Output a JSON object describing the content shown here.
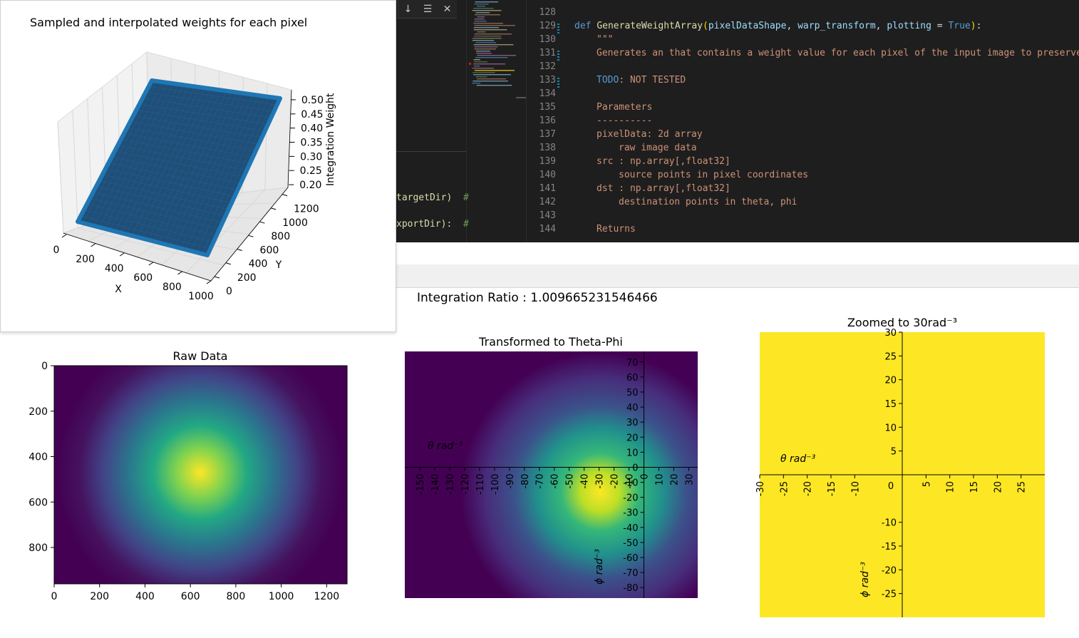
{
  "editor": {
    "find_widget": {
      "next_icon": "arrow-down-icon",
      "selection_icon": "selection-lines-icon",
      "close_icon": "close-icon"
    },
    "left_lines": [
      {
        "text": "targetDir)",
        "comment": "#"
      },
      {
        "text": "xportDir):",
        "comment": "#"
      }
    ],
    "line_numbers": [
      "128",
      "129",
      "130",
      "131",
      "132",
      "133",
      "134",
      "135",
      "136",
      "137",
      "138",
      "139",
      "140",
      "141",
      "142",
      "143",
      "144"
    ],
    "code": {
      "def_kw": "def",
      "func_name": "GenerateWeightArray",
      "paren_open": "(",
      "param1": "pixelDataShape",
      "comma1": ", ",
      "param2": "warp_transform",
      "comma2": ", ",
      "param3": "plotting",
      "eq": " = ",
      "bool_val": "True",
      "paren_close": ")",
      "colon": ":",
      "doc_open": "\"\"\"",
      "doc_line1": "Generates an that contains a weight value for each pixel of the input image to preserve",
      "todo_kw": "TODO",
      "todo_rest": ": NOT TESTED",
      "params_header": "Parameters",
      "params_rule": "----------",
      "p1": "pixelData: 2d array",
      "p1_desc": "raw image data",
      "p2": "src : np.array[,float32]",
      "p2_desc": "source points in pixel coordinates",
      "p3": "dst : np.array[,float32]",
      "p3_desc": "destination points in theta, phi",
      "returns": "Returns"
    }
  },
  "integration_ratio": "Integration Ratio : 1.009665231546466",
  "chart_data": [
    {
      "type": "surface3d",
      "title": "Sampled and interpolated weights for each pixel",
      "xlabel": "X",
      "ylabel": "Y",
      "zlabel": "Integration Weight",
      "xticks": [
        "0",
        "200",
        "400",
        "600",
        "800",
        "1000"
      ],
      "yticks": [
        "0",
        "200",
        "400",
        "600",
        "800",
        "1000",
        "1200"
      ],
      "zticks": [
        "0.20",
        "0.25",
        "0.30",
        "0.35",
        "0.40",
        "0.45",
        "0.50"
      ],
      "xlim": [
        0,
        1000
      ],
      "ylim": [
        0,
        1300
      ],
      "zlim": [
        0.17,
        0.52
      ],
      "color": "#1f77b4",
      "grid": true
    },
    {
      "type": "heatmap",
      "title": "Raw Data",
      "xticks": [
        "0",
        "200",
        "400",
        "600",
        "800",
        "1000",
        "1200"
      ],
      "yticks": [
        "0",
        "200",
        "400",
        "600",
        "800"
      ],
      "xlim": [
        0,
        1290
      ],
      "ylim": [
        960,
        0
      ],
      "colormap": "viridis",
      "peak": {
        "x": 650,
        "y": 470
      }
    },
    {
      "type": "heatmap",
      "title": "Transformed to Theta-Phi",
      "xlabel": "θ  rad⁻³",
      "ylabel": "ϕ  rad⁻³",
      "xticks": [
        "-150",
        "-140",
        "-130",
        "-120",
        "-110",
        "-100",
        "-90",
        "-80",
        "-70",
        "-60",
        "-50",
        "-40",
        "-30",
        "-20",
        "-10",
        "0",
        "10",
        "20",
        "30"
      ],
      "yticks": [
        "70",
        "60",
        "50",
        "40",
        "30",
        "20",
        "10",
        "0",
        "-10",
        "-20",
        "-30",
        "-40",
        "-50",
        "-60",
        "-70",
        "-80"
      ],
      "xlim": [
        -160,
        36
      ],
      "ylim": [
        -87,
        77
      ],
      "colormap": "viridis",
      "peak": {
        "x": -25,
        "y": -17
      }
    },
    {
      "type": "heatmap",
      "title": "Zoomed to 30rad⁻³",
      "xlabel": "θ  rad⁻³",
      "ylabel": "ϕ  rad⁻³",
      "xticks": [
        "-30",
        "-25",
        "-20",
        "-15",
        "-10",
        "0",
        "5",
        "10",
        "15",
        "20",
        "25"
      ],
      "yticks": [
        "30",
        "25",
        "20",
        "15",
        "10",
        "5",
        "-10",
        "-15",
        "-20",
        "-25"
      ],
      "xlim": [
        -30,
        30
      ],
      "ylim": [
        -30,
        30
      ],
      "colormap": "viridis"
    }
  ]
}
